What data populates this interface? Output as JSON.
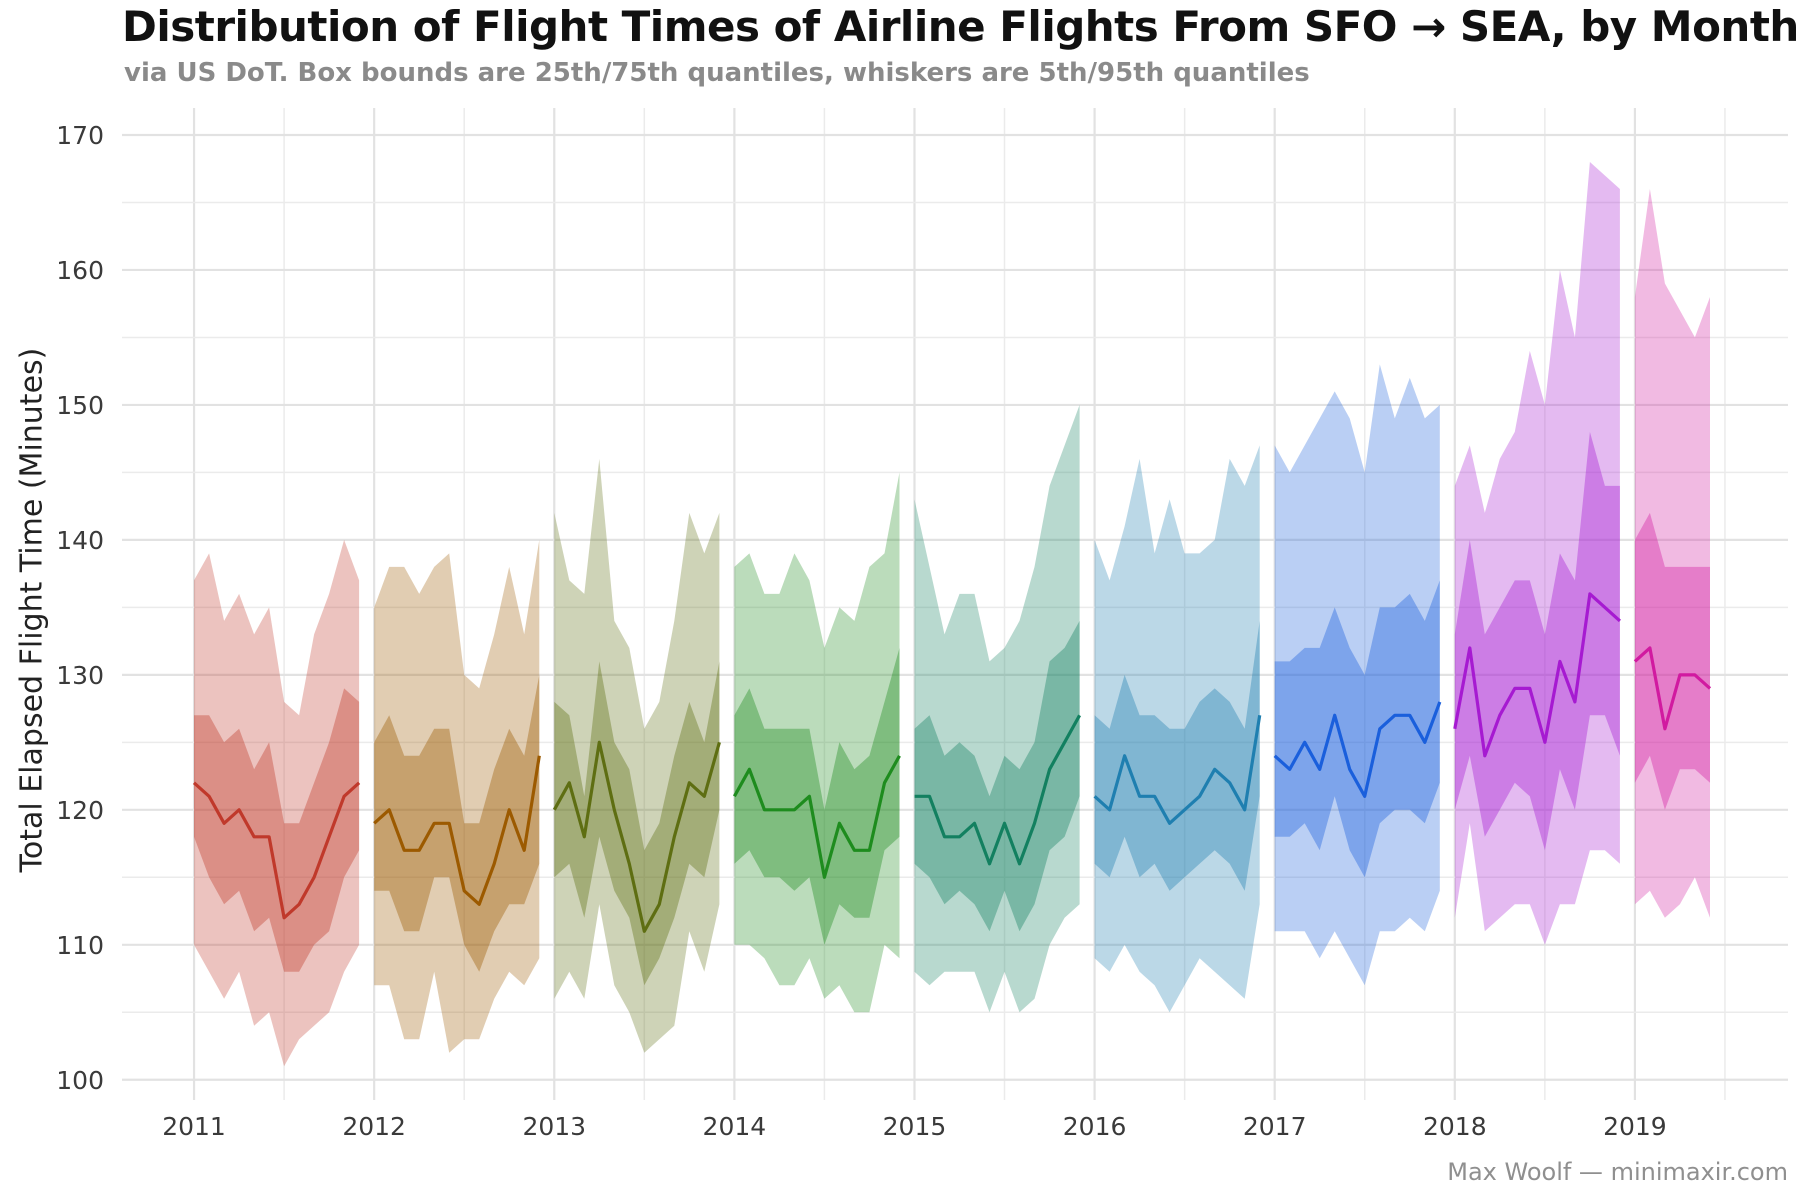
{
  "chart_data": {
    "type": "area",
    "title": "Distribution of Flight Times of Airline Flights From SFO → SEA, by Month",
    "subtitle": "via US DoT. Box bounds are 25th/75th quantiles, whiskers are 5th/95th quantiles",
    "xlabel": "",
    "ylabel": "Total Elapsed Flight Time (Minutes)",
    "caption": "Max Woolf — minimaxir.com",
    "x_ticks": [
      "2011",
      "2012",
      "2013",
      "2014",
      "2015",
      "2016",
      "2017",
      "2018",
      "2019"
    ],
    "y_ticks": [
      100,
      110,
      120,
      130,
      140,
      150,
      160,
      170
    ],
    "xlim": [
      2010.6,
      2019.85
    ],
    "ylim": [
      98.5,
      172
    ],
    "grid": true,
    "legend": "none",
    "series": [
      {
        "year": 2011,
        "color": "#c0392b",
        "median": [
          122,
          121,
          119,
          120,
          118,
          118,
          112,
          113,
          115,
          118,
          121,
          122
        ],
        "q25": [
          118,
          115,
          113,
          114,
          111,
          112,
          108,
          108,
          110,
          111,
          115,
          117
        ],
        "q75": [
          127,
          127,
          125,
          126,
          123,
          125,
          119,
          119,
          122,
          125,
          129,
          128
        ],
        "p05": [
          110,
          108,
          106,
          108,
          104,
          105,
          101,
          103,
          104,
          105,
          108,
          110
        ],
        "p95": [
          137,
          139,
          134,
          136,
          133,
          135,
          128,
          127,
          133,
          136,
          140,
          137
        ]
      },
      {
        "year": 2012,
        "color": "#9c5a00",
        "median": [
          119,
          120,
          117,
          117,
          119,
          119,
          114,
          113,
          116,
          120,
          117,
          124
        ],
        "q25": [
          114,
          114,
          111,
          111,
          115,
          115,
          110,
          108,
          111,
          113,
          113,
          116
        ],
        "q75": [
          125,
          127,
          124,
          124,
          126,
          126,
          119,
          119,
          123,
          126,
          124,
          130
        ],
        "p05": [
          107,
          107,
          103,
          103,
          108,
          102,
          103,
          103,
          106,
          108,
          107,
          109
        ],
        "p95": [
          135,
          138,
          138,
          136,
          138,
          139,
          130,
          129,
          133,
          138,
          133,
          140
        ]
      },
      {
        "year": 2013,
        "color": "#5e6e12",
        "median": [
          120,
          122,
          118,
          125,
          120,
          116,
          111,
          113,
          118,
          122,
          121,
          125
        ],
        "q25": [
          115,
          116,
          112,
          118,
          114,
          112,
          107,
          109,
          112,
          116,
          115,
          120
        ],
        "q75": [
          128,
          127,
          121,
          131,
          125,
          123,
          117,
          119,
          124,
          128,
          125,
          131
        ],
        "p05": [
          106,
          108,
          106,
          113,
          107,
          105,
          102,
          103,
          104,
          111,
          108,
          113
        ],
        "p95": [
          142,
          137,
          136,
          146,
          134,
          132,
          126,
          128,
          134,
          142,
          139,
          142
        ]
      },
      {
        "year": 2014,
        "color": "#1e8c1e",
        "median": [
          121,
          123,
          120,
          120,
          120,
          121,
          115,
          119,
          117,
          117,
          122,
          124
        ],
        "q25": [
          116,
          117,
          115,
          115,
          114,
          115,
          110,
          113,
          112,
          112,
          117,
          118
        ],
        "q75": [
          127,
          129,
          126,
          126,
          126,
          126,
          120,
          125,
          123,
          124,
          128,
          132
        ],
        "p05": [
          110,
          110,
          109,
          107,
          107,
          109,
          106,
          107,
          105,
          105,
          110,
          109
        ],
        "p95": [
          138,
          139,
          136,
          136,
          139,
          137,
          132,
          135,
          134,
          138,
          139,
          145
        ]
      },
      {
        "year": 2015,
        "color": "#138060",
        "median": [
          121,
          121,
          118,
          118,
          119,
          116,
          119,
          116,
          119,
          123,
          125,
          127
        ],
        "q25": [
          116,
          115,
          113,
          114,
          113,
          111,
          114,
          111,
          113,
          117,
          118,
          121
        ],
        "q75": [
          126,
          127,
          124,
          125,
          124,
          121,
          124,
          123,
          125,
          131,
          132,
          134
        ],
        "p05": [
          108,
          107,
          108,
          108,
          108,
          105,
          108,
          105,
          106,
          110,
          112,
          113
        ],
        "p95": [
          143,
          138,
          133,
          136,
          136,
          131,
          132,
          134,
          138,
          144,
          147,
          150
        ]
      },
      {
        "year": 2016,
        "color": "#1f7fb0",
        "median": [
          121,
          120,
          124,
          121,
          121,
          119,
          120,
          121,
          123,
          122,
          120,
          127
        ],
        "q25": [
          116,
          115,
          118,
          115,
          116,
          114,
          115,
          116,
          117,
          116,
          114,
          121
        ],
        "q75": [
          127,
          126,
          130,
          127,
          127,
          126,
          126,
          128,
          129,
          128,
          126,
          134
        ],
        "p05": [
          109,
          108,
          110,
          108,
          107,
          105,
          107,
          109,
          108,
          107,
          106,
          113
        ],
        "p95": [
          140,
          137,
          141,
          146,
          139,
          143,
          139,
          139,
          140,
          146,
          144,
          147
        ]
      },
      {
        "year": 2017,
        "color": "#1a5fdc",
        "median": [
          124,
          123,
          125,
          123,
          127,
          123,
          121,
          126,
          127,
          127,
          125,
          128
        ],
        "q25": [
          118,
          118,
          119,
          117,
          121,
          117,
          115,
          119,
          120,
          120,
          119,
          122
        ],
        "q75": [
          131,
          131,
          132,
          132,
          135,
          132,
          130,
          135,
          135,
          136,
          134,
          137
        ],
        "p05": [
          111,
          111,
          111,
          109,
          111,
          109,
          107,
          111,
          111,
          112,
          111,
          114
        ],
        "p95": [
          147,
          145,
          147,
          149,
          151,
          149,
          145,
          153,
          149,
          152,
          149,
          150
        ]
      },
      {
        "year": 2018,
        "color": "#a61ad1",
        "median": [
          126,
          132,
          124,
          127,
          129,
          129,
          125,
          131,
          128,
          136,
          135,
          134
        ],
        "q25": [
          120,
          124,
          118,
          120,
          122,
          121,
          117,
          123,
          120,
          127,
          127,
          124
        ],
        "q75": [
          133,
          140,
          133,
          135,
          137,
          137,
          133,
          139,
          137,
          148,
          144,
          144
        ],
        "p05": [
          112,
          119,
          111,
          112,
          113,
          113,
          110,
          113,
          113,
          117,
          117,
          116
        ],
        "p95": [
          144,
          147,
          142,
          146,
          148,
          154,
          150,
          160,
          155,
          168,
          167,
          166
        ]
      },
      {
        "year": 2019,
        "color": "#d11aa0",
        "median": [
          131,
          132,
          126,
          130,
          130,
          129
        ],
        "q25": [
          122,
          124,
          120,
          123,
          123,
          122
        ],
        "q75": [
          140,
          142,
          138,
          138,
          138,
          138
        ],
        "p05": [
          113,
          114,
          112,
          113,
          115,
          112
        ],
        "p95": [
          158,
          166,
          159,
          157,
          155,
          158
        ]
      }
    ]
  }
}
